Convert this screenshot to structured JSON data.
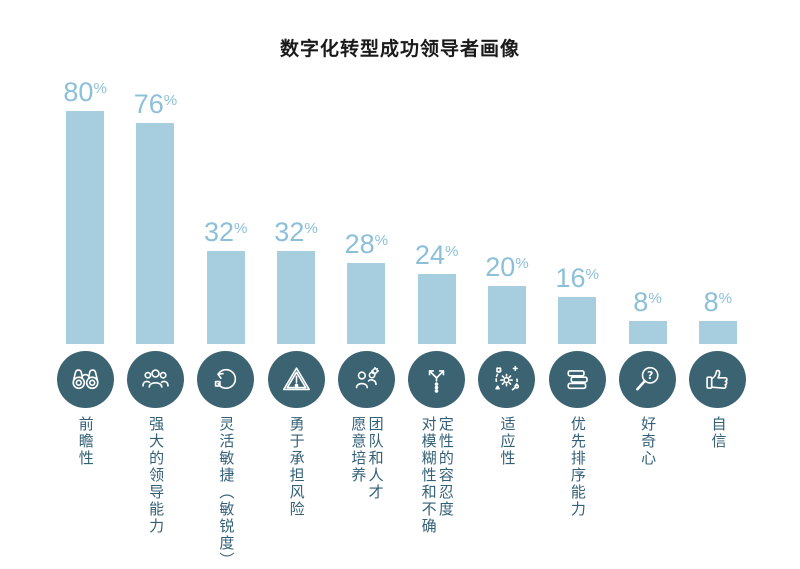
{
  "title": "数字化转型成功领导者画像",
  "colors": {
    "background": "#ffffff",
    "title": "#1a1a1a",
    "bar": "#a6cede",
    "value_label": "#8cc0d9",
    "circle": "#3b6372",
    "icon": "#ffffff",
    "category_label": "#336078"
  },
  "chart_data": {
    "type": "bar",
    "title": "数字化转型成功领导者画像",
    "unit": "%",
    "ylim": [
      0,
      100
    ],
    "grid": false,
    "axes_visible": false,
    "legend": null,
    "value_labels_position": "above-bars",
    "categories": [
      {
        "label": "前瞻性",
        "label_lines": [
          "前瞻性"
        ],
        "value": 80,
        "icon": "binoculars-icon"
      },
      {
        "label": "强大的领导能力",
        "label_lines": [
          "强大的领导能力"
        ],
        "value": 76,
        "icon": "team-icon"
      },
      {
        "label": "灵活敏捷（敏锐度）",
        "label_lines": [
          "灵活敏捷（敏锐度）"
        ],
        "value": 32,
        "icon": "agility-loop-icon"
      },
      {
        "label": "勇于承担风险",
        "label_lines": [
          "勇于承担风险"
        ],
        "value": 32,
        "icon": "warning-triangle-icon"
      },
      {
        "label": "愿意培养团队和人才",
        "label_lines": [
          "愿意培养",
          "团队和人才"
        ],
        "value": 28,
        "icon": "talent-development-icon"
      },
      {
        "label": "对模糊性和不确定性的容忍度",
        "label_lines": [
          "对模糊性和不确",
          "定性的容忍度"
        ],
        "value": 24,
        "icon": "branching-arrows-icon"
      },
      {
        "label": "适应性",
        "label_lines": [
          "适应性"
        ],
        "value": 20,
        "icon": "adaptability-gear-icon"
      },
      {
        "label": "优先排序能力",
        "label_lines": [
          "优先排序能力"
        ],
        "value": 16,
        "icon": "priority-list-icon"
      },
      {
        "label": "好奇心",
        "label_lines": [
          "好奇心"
        ],
        "value": 8,
        "icon": "curiosity-magnifier-icon"
      },
      {
        "label": "自信",
        "label_lines": [
          "自信"
        ],
        "value": 8,
        "icon": "thumbs-up-icon"
      }
    ]
  }
}
